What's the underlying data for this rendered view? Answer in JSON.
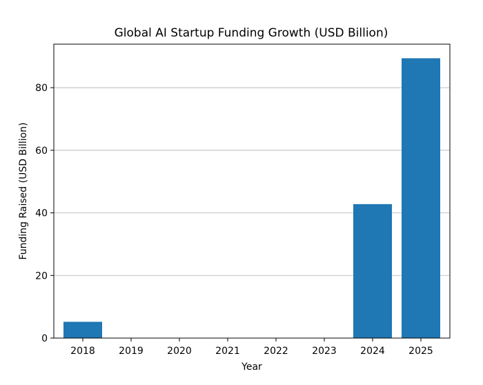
{
  "chart_data": {
    "type": "bar",
    "title": "Global AI Startup Funding Growth (USD Billion)",
    "xlabel": "Year",
    "ylabel": "Funding Raised (USD Billion)",
    "categories": [
      "2018",
      "2019",
      "2020",
      "2021",
      "2022",
      "2023",
      "2024",
      "2025"
    ],
    "values": [
      5.2,
      0,
      0,
      0,
      0,
      0,
      42.8,
      89.4
    ],
    "ylim": [
      0,
      93.9
    ],
    "yticks": [
      0,
      20,
      40,
      60,
      80
    ],
    "grid": "y",
    "bar_color": "#1f77b4"
  }
}
